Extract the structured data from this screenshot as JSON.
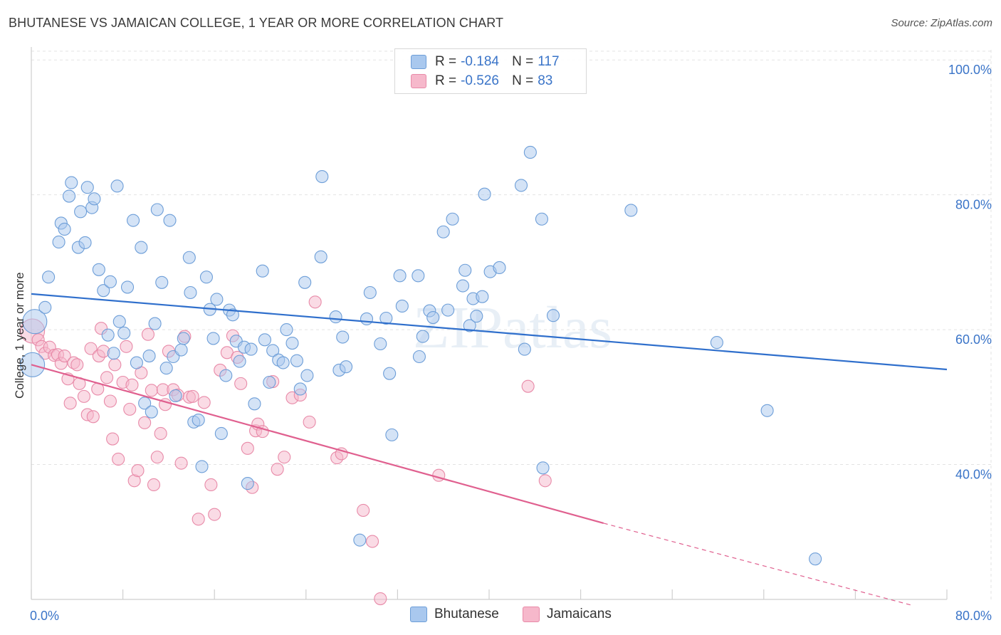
{
  "title": "BHUTANESE VS JAMAICAN COLLEGE, 1 YEAR OR MORE CORRELATION CHART",
  "source": "Source: ZipAtlas.com",
  "watermark": "ZIPatlas",
  "stats": [
    {
      "r_label": "R =",
      "r_value": "-0.184",
      "n_label": "N =",
      "n_value": "117"
    },
    {
      "r_label": "R =",
      "r_value": "-0.526",
      "n_label": "N =",
      "n_value": "83"
    }
  ],
  "legend": [
    {
      "name": "Bhutanese"
    },
    {
      "name": "Jamaicans"
    }
  ],
  "colors": {
    "blue_fill": "#a9c8ee",
    "blue_stroke": "#6d9ed8",
    "blue_line": "#2f6fcc",
    "pink_fill": "#f6b8cb",
    "pink_stroke": "#e88aa8",
    "pink_line": "#e0608f",
    "tick_text": "#3a74c8",
    "grid": "#e3e3e3"
  },
  "chart_data": {
    "type": "scatter",
    "title": "BHUTANESE VS JAMAICAN COLLEGE, 1 YEAR OR MORE CORRELATION CHART",
    "xlabel": "",
    "ylabel": "College, 1 year or more",
    "xlim": [
      0,
      80
    ],
    "ylim": [
      20,
      101.5
    ],
    "x_tick_labels": [
      {
        "value": 0,
        "label": "0.0%"
      },
      {
        "value": 80,
        "label": "80.0%"
      }
    ],
    "y_tick_labels": [
      {
        "value": 40,
        "label": "40.0%"
      },
      {
        "value": 60,
        "label": "60.0%"
      },
      {
        "value": 80,
        "label": "80.0%"
      },
      {
        "value": 100,
        "label": "100.0%"
      }
    ],
    "grid": true,
    "legend_position": "bottom-center",
    "series": [
      {
        "name": "Bhutanese",
        "r": -0.184,
        "n": 117,
        "trend": {
          "x1": 0,
          "y1": 65.3,
          "x2": 80,
          "y2": 54.1
        },
        "points": [
          [
            0.1,
            54.8
          ],
          [
            0.3,
            61.2
          ],
          [
            1.2,
            63.3
          ],
          [
            1.5,
            67.8
          ],
          [
            2.4,
            73.0
          ],
          [
            2.6,
            75.8
          ],
          [
            2.9,
            74.9
          ],
          [
            3.3,
            79.8
          ],
          [
            3.5,
            81.8
          ],
          [
            4.1,
            72.2
          ],
          [
            4.3,
            77.5
          ],
          [
            4.7,
            72.9
          ],
          [
            4.9,
            81.1
          ],
          [
            5.3,
            78.1
          ],
          [
            5.5,
            79.4
          ],
          [
            5.9,
            68.9
          ],
          [
            6.3,
            65.8
          ],
          [
            6.7,
            59.2
          ],
          [
            6.9,
            67.1
          ],
          [
            7.2,
            56.5
          ],
          [
            7.5,
            81.3
          ],
          [
            7.7,
            61.2
          ],
          [
            8.1,
            59.5
          ],
          [
            8.4,
            66.3
          ],
          [
            8.9,
            76.2
          ],
          [
            9.2,
            55.1
          ],
          [
            9.6,
            72.2
          ],
          [
            9.9,
            49.1
          ],
          [
            10.3,
            56.1
          ],
          [
            10.5,
            47.8
          ],
          [
            10.8,
            60.9
          ],
          [
            11.0,
            77.8
          ],
          [
            11.4,
            67.0
          ],
          [
            11.8,
            54.3
          ],
          [
            12.1,
            76.2
          ],
          [
            12.4,
            56.0
          ],
          [
            12.6,
            50.2
          ],
          [
            13.1,
            57.0
          ],
          [
            13.3,
            58.7
          ],
          [
            13.8,
            70.7
          ],
          [
            13.9,
            65.5
          ],
          [
            14.2,
            46.3
          ],
          [
            14.6,
            46.6
          ],
          [
            14.9,
            39.7
          ],
          [
            15.3,
            67.8
          ],
          [
            15.6,
            63.0
          ],
          [
            15.9,
            58.7
          ],
          [
            16.2,
            64.5
          ],
          [
            16.6,
            44.6
          ],
          [
            17.0,
            53.2
          ],
          [
            17.3,
            62.9
          ],
          [
            17.6,
            62.2
          ],
          [
            17.9,
            58.3
          ],
          [
            18.2,
            55.3
          ],
          [
            18.6,
            57.4
          ],
          [
            18.9,
            37.2
          ],
          [
            19.2,
            57.1
          ],
          [
            19.5,
            49.0
          ],
          [
            20.2,
            68.7
          ],
          [
            20.4,
            58.5
          ],
          [
            20.8,
            52.2
          ],
          [
            21.1,
            56.9
          ],
          [
            21.6,
            55.5
          ],
          [
            22.0,
            55.1
          ],
          [
            22.3,
            60.0
          ],
          [
            22.8,
            58.0
          ],
          [
            23.2,
            55.4
          ],
          [
            23.5,
            51.2
          ],
          [
            23.9,
            67.0
          ],
          [
            24.1,
            53.2
          ],
          [
            25.3,
            70.8
          ],
          [
            25.4,
            82.7
          ],
          [
            26.6,
            61.9
          ],
          [
            26.9,
            54.0
          ],
          [
            27.2,
            58.9
          ],
          [
            27.5,
            54.5
          ],
          [
            28.7,
            28.8
          ],
          [
            29.3,
            61.6
          ],
          [
            29.6,
            65.5
          ],
          [
            30.5,
            57.9
          ],
          [
            31.0,
            61.7
          ],
          [
            31.3,
            53.5
          ],
          [
            31.5,
            44.4
          ],
          [
            32.2,
            68.0
          ],
          [
            32.4,
            63.5
          ],
          [
            33.8,
            68.0
          ],
          [
            33.9,
            56.0
          ],
          [
            34.2,
            59.0
          ],
          [
            34.8,
            62.8
          ],
          [
            35.1,
            61.8
          ],
          [
            36.0,
            74.5
          ],
          [
            36.4,
            62.9
          ],
          [
            36.8,
            76.4
          ],
          [
            37.7,
            66.5
          ],
          [
            37.9,
            68.8
          ],
          [
            38.3,
            60.6
          ],
          [
            38.6,
            64.6
          ],
          [
            38.9,
            62.0
          ],
          [
            39.4,
            64.9
          ],
          [
            39.6,
            80.1
          ],
          [
            40.1,
            68.6
          ],
          [
            40.9,
            69.2
          ],
          [
            42.8,
            81.4
          ],
          [
            43.1,
            57.1
          ],
          [
            43.6,
            86.3
          ],
          [
            44.6,
            76.4
          ],
          [
            44.7,
            39.5
          ],
          [
            45.6,
            62.1
          ],
          [
            52.4,
            77.7
          ],
          [
            59.9,
            58.1
          ],
          [
            64.3,
            48.0
          ],
          [
            68.5,
            26.0
          ]
        ]
      },
      {
        "name": "Jamaicans",
        "r": -0.526,
        "n": 83,
        "trend": {
          "x1": 0,
          "y1": 54.8,
          "x2": 50,
          "y2": 31.3,
          "dashed_to": {
            "x": 77,
            "y": 19.1
          }
        },
        "points": [
          [
            0.1,
            59.8
          ],
          [
            0.6,
            58.5
          ],
          [
            0.9,
            57.5
          ],
          [
            1.2,
            56.5
          ],
          [
            1.6,
            57.4
          ],
          [
            2.0,
            56.2
          ],
          [
            2.3,
            56.3
          ],
          [
            2.6,
            55.0
          ],
          [
            2.9,
            56.1
          ],
          [
            3.2,
            52.7
          ],
          [
            3.4,
            49.1
          ],
          [
            3.7,
            55.1
          ],
          [
            4.0,
            54.8
          ],
          [
            4.2,
            52.0
          ],
          [
            4.6,
            50.1
          ],
          [
            4.9,
            47.4
          ],
          [
            5.2,
            57.2
          ],
          [
            5.4,
            47.1
          ],
          [
            5.8,
            51.2
          ],
          [
            5.9,
            56.1
          ],
          [
            6.1,
            60.2
          ],
          [
            6.3,
            56.8
          ],
          [
            6.6,
            52.9
          ],
          [
            6.9,
            49.4
          ],
          [
            7.1,
            43.8
          ],
          [
            7.3,
            54.8
          ],
          [
            7.6,
            40.8
          ],
          [
            8.0,
            52.2
          ],
          [
            8.3,
            57.5
          ],
          [
            8.6,
            48.2
          ],
          [
            8.8,
            51.8
          ],
          [
            9.0,
            37.6
          ],
          [
            9.3,
            39.1
          ],
          [
            9.6,
            53.6
          ],
          [
            9.9,
            46.2
          ],
          [
            10.2,
            59.3
          ],
          [
            10.5,
            51.0
          ],
          [
            10.7,
            37.0
          ],
          [
            11.0,
            41.1
          ],
          [
            11.3,
            44.6
          ],
          [
            11.5,
            51.1
          ],
          [
            11.7,
            48.9
          ],
          [
            12.0,
            56.8
          ],
          [
            12.4,
            51.1
          ],
          [
            12.8,
            50.3
          ],
          [
            13.1,
            40.2
          ],
          [
            13.4,
            59.0
          ],
          [
            13.8,
            50.0
          ],
          [
            14.1,
            50.1
          ],
          [
            14.6,
            31.9
          ],
          [
            15.1,
            49.2
          ],
          [
            15.7,
            37.0
          ],
          [
            16.0,
            32.6
          ],
          [
            16.5,
            54.0
          ],
          [
            17.1,
            56.6
          ],
          [
            17.6,
            59.1
          ],
          [
            18.0,
            55.9
          ],
          [
            18.3,
            52.0
          ],
          [
            18.9,
            42.4
          ],
          [
            19.3,
            36.6
          ],
          [
            19.6,
            45.0
          ],
          [
            19.8,
            46.0
          ],
          [
            20.2,
            44.9
          ],
          [
            21.1,
            52.3
          ],
          [
            21.5,
            39.3
          ],
          [
            22.1,
            41.1
          ],
          [
            22.8,
            49.9
          ],
          [
            23.5,
            50.3
          ],
          [
            24.3,
            46.3
          ],
          [
            24.8,
            64.1
          ],
          [
            26.7,
            41.0
          ],
          [
            27.1,
            41.6
          ],
          [
            29.0,
            33.2
          ],
          [
            29.8,
            28.6
          ],
          [
            30.5,
            20.1
          ],
          [
            35.6,
            38.4
          ],
          [
            43.4,
            51.6
          ],
          [
            44.9,
            37.6
          ]
        ]
      }
    ]
  }
}
